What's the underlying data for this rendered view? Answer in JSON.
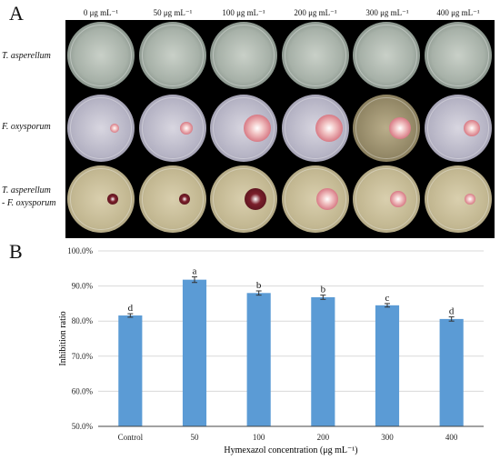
{
  "panel_a": {
    "letter": "A",
    "concentrations": [
      "0 μg mL⁻¹",
      "50 μg mL⁻¹",
      "100 μg mL⁻¹",
      "200 μg mL⁻¹",
      "300 μg mL⁻¹",
      "400 μg mL⁻¹"
    ],
    "rows": [
      {
        "label": "T. asperellum"
      },
      {
        "label": "F. oxysporum"
      },
      {
        "label_line1": "T. asperellum",
        "label_line2": "- F. oxysporum"
      }
    ]
  },
  "panel_b": {
    "letter": "B"
  },
  "chart_data": {
    "type": "bar",
    "categories": [
      "Control",
      "50",
      "100",
      "200",
      "300",
      "400"
    ],
    "values": [
      81.6,
      91.8,
      88.0,
      86.8,
      84.5,
      80.6
    ],
    "errors": [
      0.5,
      0.8,
      0.6,
      0.6,
      0.5,
      0.6
    ],
    "significance_letters": [
      "d",
      "a",
      "b",
      "b",
      "c",
      "d"
    ],
    "xlabel": "Hymexazol concentration (μg mL⁻¹)",
    "ylabel": "Inhibition ratio",
    "ylim": [
      50.0,
      100.0
    ],
    "yticks": [
      "50.0%",
      "60.0%",
      "70.0%",
      "80.0%",
      "90.0%",
      "100.0%"
    ],
    "grid": true,
    "bar_color": "#5b9bd5"
  }
}
